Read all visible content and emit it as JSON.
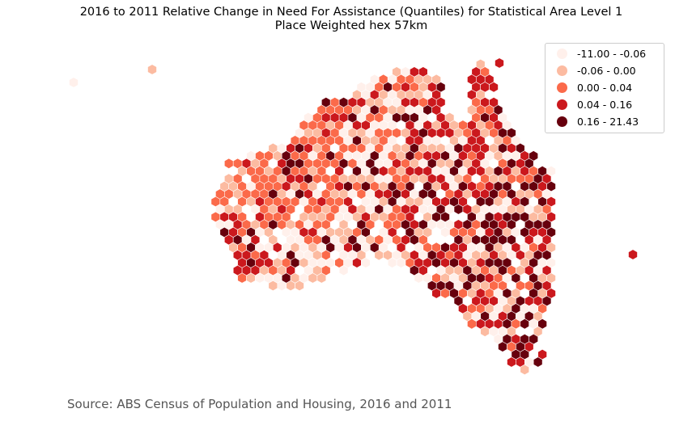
{
  "title": {
    "line1": "2016 to 2011 Relative Change in Need For Assistance (Quantiles) for Statistical Area Level 1",
    "line2": "Place Weighted hex 57km"
  },
  "legend": [
    {
      "label": "-11.00 - -0.06",
      "color": "#fff0eb"
    },
    {
      "label": "-0.06 - 0.00",
      "color": "#fcbba1"
    },
    {
      "label": "0.00 - 0.04",
      "color": "#fb6a4a"
    },
    {
      "label": "0.04 - 0.16",
      "color": "#cb181d"
    },
    {
      "label": "0.16 - 21.43",
      "color": "#67000d"
    }
  ],
  "source": "Source: ABS Census of Population and Housing, 2016 and 2011"
}
